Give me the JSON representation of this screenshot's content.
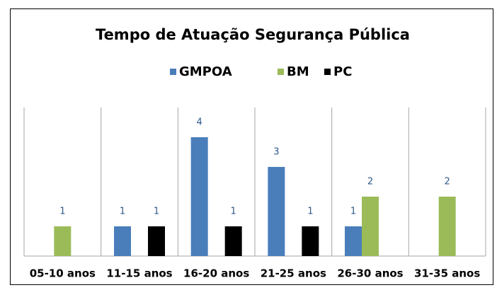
{
  "chart_data": {
    "type": "bar",
    "title": "Tempo de Atuação Segurança Pública",
    "categories": [
      "05-10 anos",
      "11-15 anos",
      "16-20 anos",
      "21-25 anos",
      "26-30 anos",
      "31-35 anos"
    ],
    "series": [
      {
        "name": "GMPOA",
        "color": "#4a7ebb",
        "values": [
          null,
          1,
          4,
          3,
          1,
          null
        ]
      },
      {
        "name": "BM",
        "color": "#9bbb59",
        "values": [
          1,
          null,
          null,
          null,
          2,
          2
        ]
      },
      {
        "name": "PC",
        "color": "#000000",
        "values": [
          null,
          1,
          1,
          1,
          null,
          null
        ]
      }
    ],
    "ylim": [
      0,
      5
    ]
  }
}
